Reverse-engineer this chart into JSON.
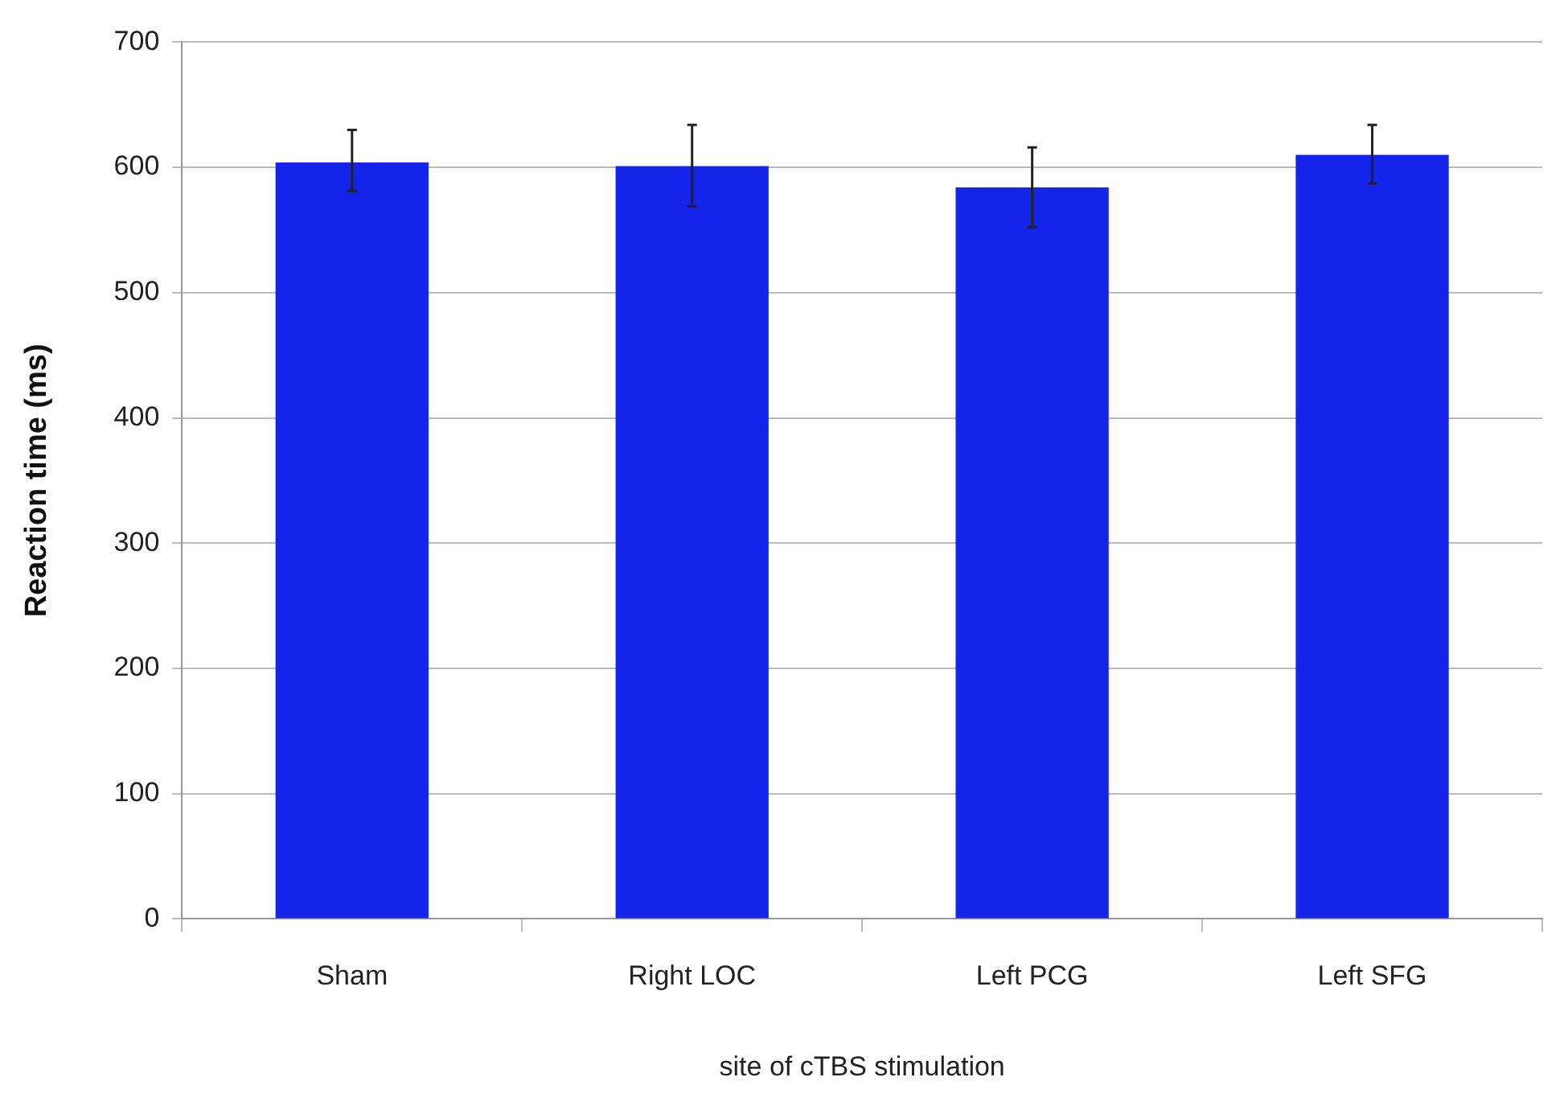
{
  "chart_data": {
    "type": "bar",
    "xlabel": "site of cTBS stimulation",
    "ylabel": "Reaction time (ms)",
    "categories": [
      "Sham",
      "Right LOC",
      "Left PCG",
      "Left SFG"
    ],
    "values": [
      604,
      601,
      584,
      610
    ],
    "color": "#1424e8",
    "errors": [
      [
        581,
        630
      ],
      [
        569,
        634
      ],
      [
        552,
        616
      ],
      [
        587,
        634
      ]
    ],
    "ylim": [
      0,
      700
    ],
    "yticks": [
      0,
      100,
      200,
      300,
      400,
      500,
      600,
      700
    ],
    "grid": "y"
  }
}
